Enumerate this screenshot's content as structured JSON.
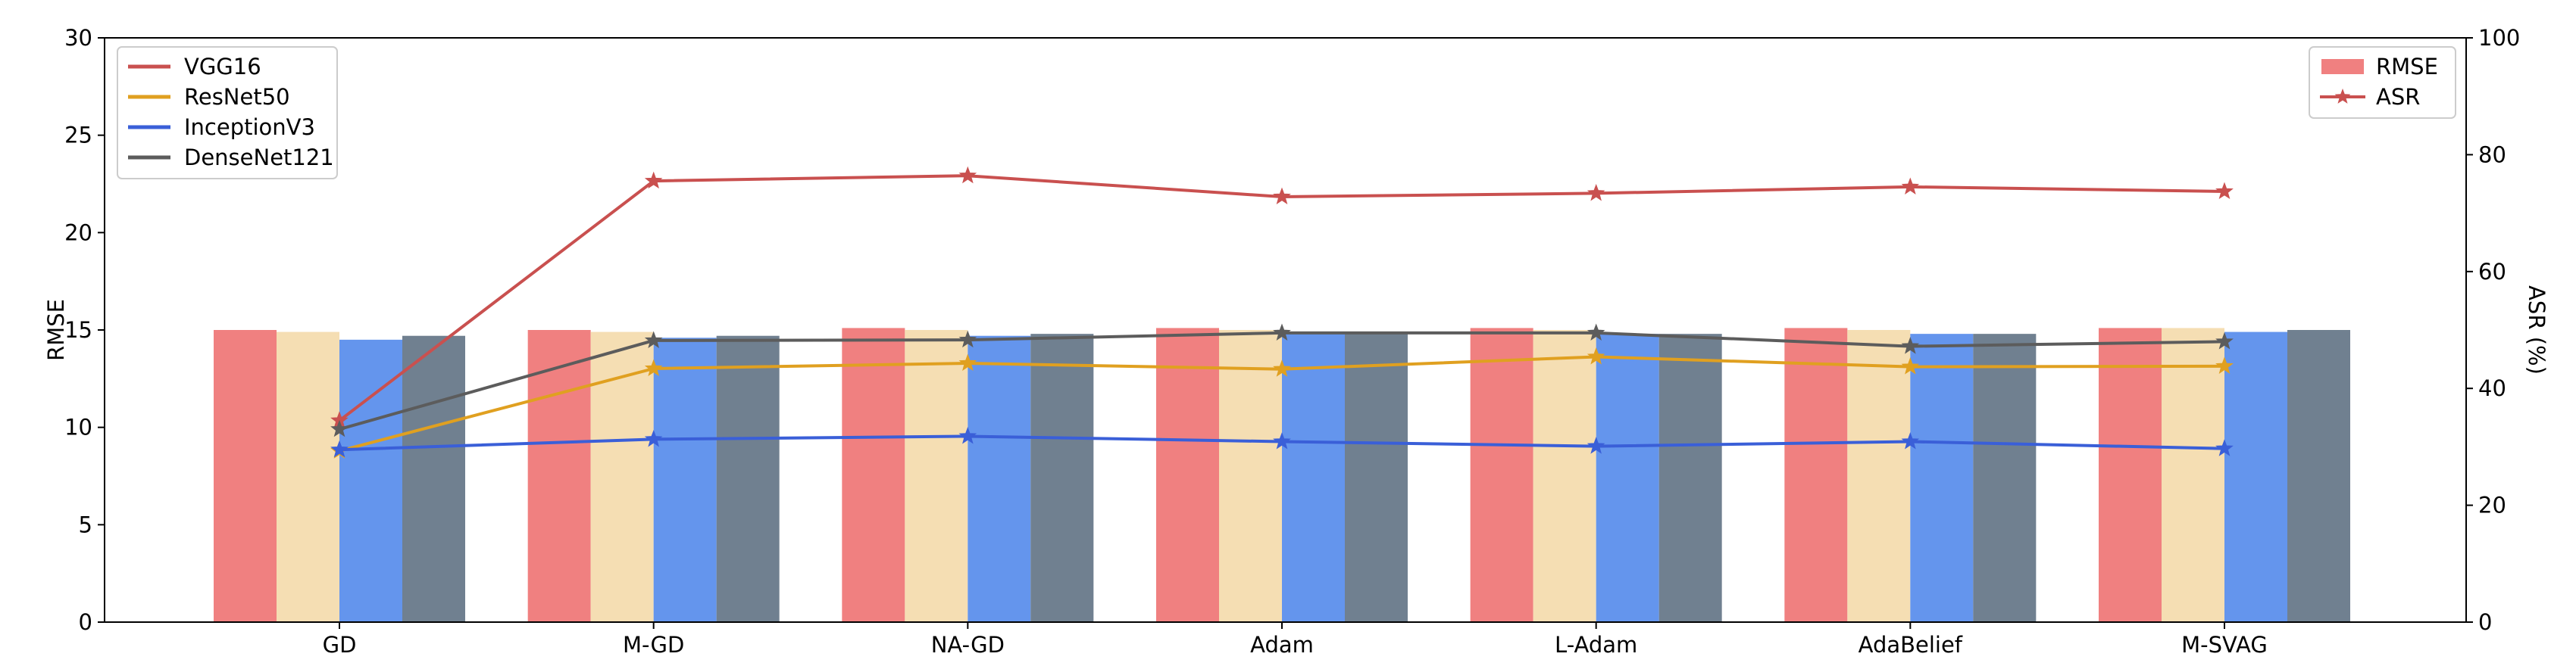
{
  "chart_data": {
    "type": "bar",
    "categories": [
      "GD",
      "M-GD",
      "NA-GD",
      "Adam",
      "L-Adam",
      "AdaBelief",
      "M-SVAG"
    ],
    "ylabel": "RMSE",
    "ylim": [
      0,
      30
    ],
    "yticks": [
      0,
      5,
      10,
      15,
      20,
      25,
      30
    ],
    "y2label": "ASR (%)",
    "y2lim": [
      0,
      100
    ],
    "y2ticks": [
      0,
      20,
      40,
      60,
      80,
      100
    ],
    "series": [
      {
        "name": "VGG16",
        "color": "#c9504f",
        "bar_color": "#f08080",
        "rmse": [
          15.0,
          15.0,
          15.1,
          15.1,
          15.1,
          15.1,
          15.1
        ],
        "asr": [
          34.5,
          75.5,
          76.4,
          72.8,
          73.4,
          74.5,
          73.7
        ]
      },
      {
        "name": "ResNet50",
        "color": "#e0a020",
        "bar_color": "#f5deb3",
        "rmse": [
          14.9,
          14.9,
          15.0,
          15.0,
          15.0,
          15.0,
          15.1
        ],
        "asr": [
          29.3,
          43.4,
          44.3,
          43.3,
          45.4,
          43.7,
          43.8
        ]
      },
      {
        "name": "InceptionV3",
        "color": "#3a5fd8",
        "bar_color": "#6495ed",
        "rmse": [
          14.5,
          14.6,
          14.7,
          14.8,
          14.8,
          14.8,
          14.9
        ],
        "asr": [
          29.5,
          31.3,
          31.8,
          30.9,
          30.1,
          30.9,
          29.7
        ]
      },
      {
        "name": "DenseNet121",
        "color": "#5c5c5c",
        "bar_color": "#708090",
        "rmse": [
          14.7,
          14.7,
          14.8,
          14.8,
          14.8,
          14.8,
          15.0
        ],
        "asr": [
          33.0,
          48.2,
          48.3,
          49.5,
          49.5,
          47.2,
          48.0
        ]
      }
    ],
    "legend_left": {
      "placement": "top-left",
      "entries": [
        "VGG16",
        "ResNet50",
        "InceptionV3",
        "DenseNet121"
      ]
    },
    "legend_right": {
      "placement": "top-right",
      "entries": [
        {
          "label": "RMSE",
          "kind": "bar",
          "color": "#f08080"
        },
        {
          "label": "ASR",
          "kind": "line-star",
          "color": "#c9504f"
        }
      ]
    },
    "grid": false
  }
}
